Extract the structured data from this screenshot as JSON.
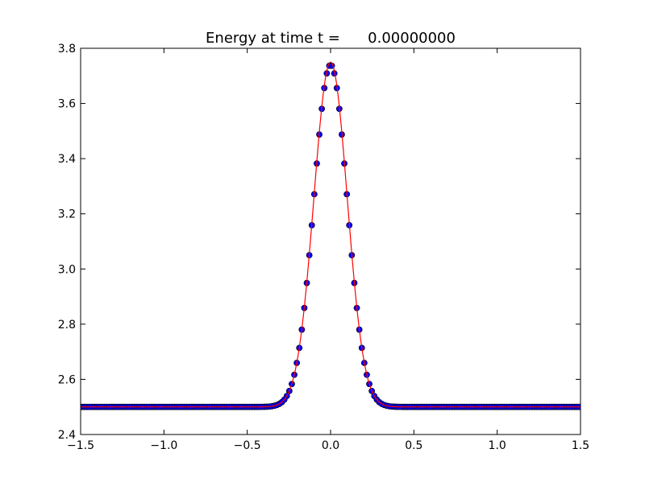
{
  "chart_data": {
    "type": "line",
    "title": "Energy at time t =      0.00000000",
    "xlabel": "",
    "ylabel": "",
    "xlim": [
      -1.5,
      1.5
    ],
    "ylim": [
      2.4,
      3.8
    ],
    "grid": false,
    "x_ticks": [
      -1.5,
      -1.0,
      -0.5,
      0.0,
      0.5,
      1.0,
      1.5
    ],
    "x_tick_labels": [
      "−1.5",
      "−1.0",
      "−0.5",
      "0.0",
      "0.5",
      "1.0",
      "1.5"
    ],
    "y_ticks": [
      2.4,
      2.6,
      2.8,
      3.0,
      3.2,
      3.4,
      3.6,
      3.8
    ],
    "y_tick_labels": [
      "2.4",
      "2.6",
      "2.8",
      "3.0",
      "3.2",
      "3.4",
      "3.6",
      "3.8"
    ],
    "series": [
      {
        "style": "markers",
        "marker": "circle",
        "color": "#0000ff",
        "edge_color": "#000000",
        "x_range": [
          -1.4925,
          1.4925
        ],
        "point_count": 200,
        "baseline": 2.5,
        "peak": 3.74,
        "pulse_width": 0.1
      },
      {
        "style": "line",
        "color": "#ff0000",
        "x_range": [
          -1.5,
          1.5
        ],
        "baseline": 2.5,
        "peak": 3.75,
        "pulse_width": 0.1
      }
    ]
  }
}
